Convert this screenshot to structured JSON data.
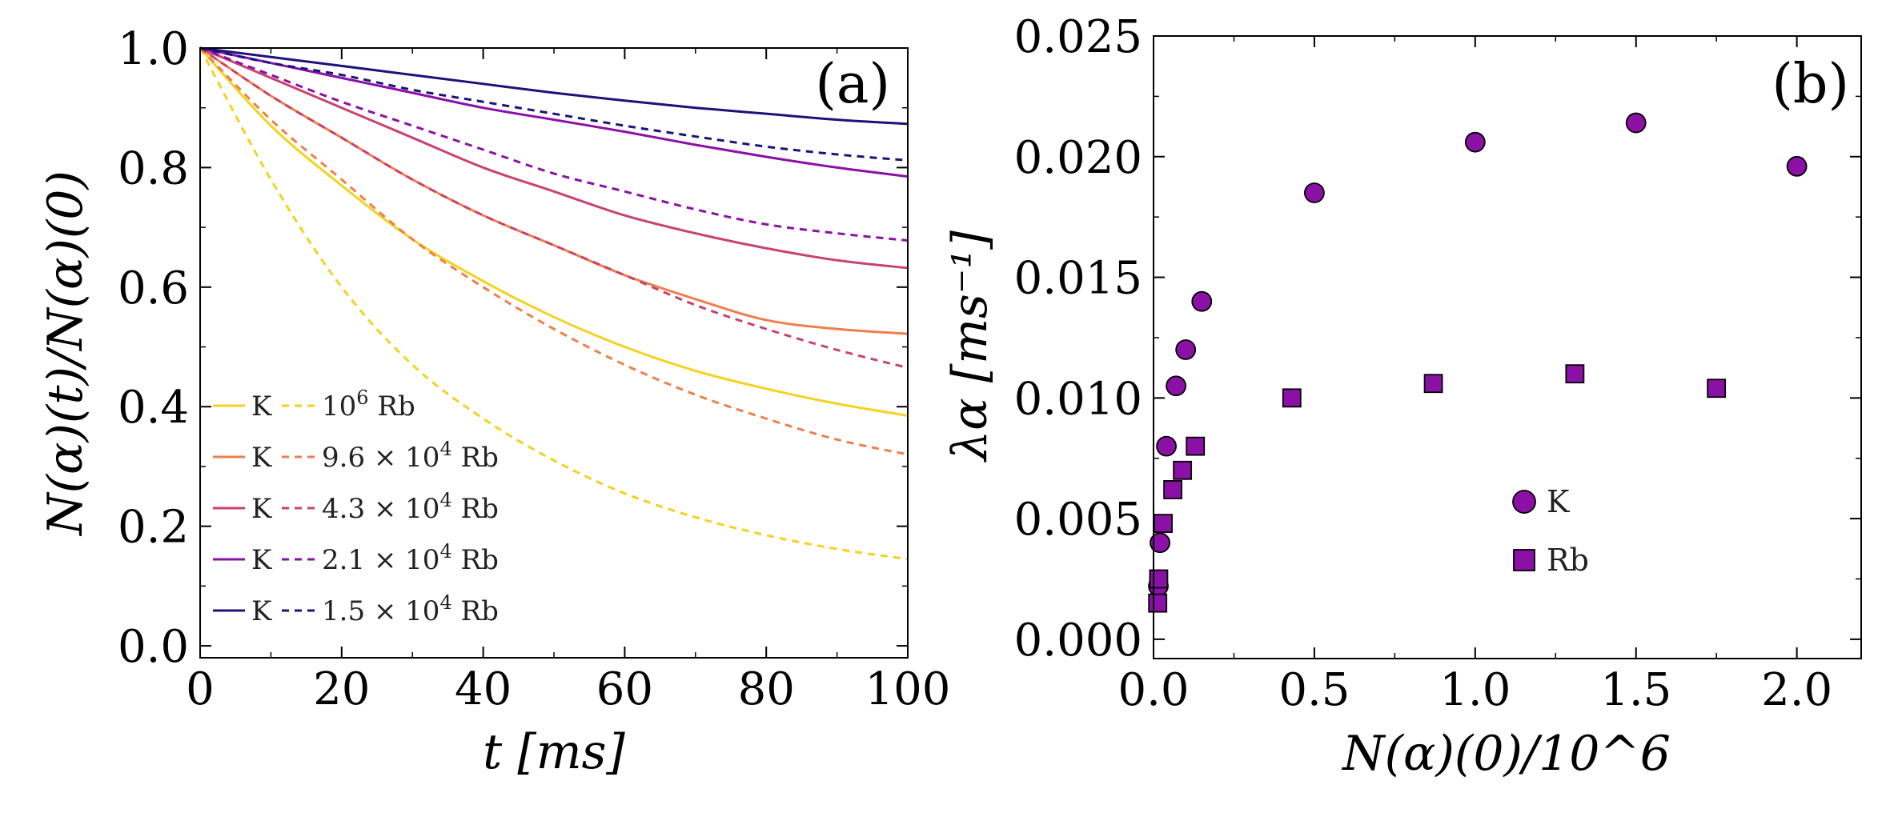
{
  "chart_data": [
    {
      "type": "line",
      "panel_label": "(a)",
      "xlabel": "t [ms]",
      "ylabel": "N(α)(t)/N(α)(0)",
      "xlim": [
        0,
        100
      ],
      "ylim": [
        0,
        1
      ],
      "xticks": [
        "0",
        "20",
        "40",
        "60",
        "80",
        "100"
      ],
      "yticks": [
        "0.0",
        "0.2",
        "0.4",
        "0.6",
        "0.8",
        "1.0"
      ],
      "xtick_values": [
        0,
        20,
        40,
        60,
        80,
        100
      ],
      "ytick_values": [
        0,
        0.2,
        0.4,
        0.6,
        0.8,
        1.0
      ],
      "legend_position": "bottom-left",
      "x": [
        0,
        10,
        20,
        30,
        40,
        50,
        60,
        70,
        80,
        90,
        100
      ],
      "series": [
        {
          "name": "K",
          "partner": "10^6 Rb",
          "species": "K",
          "dashed": false,
          "color": "#f4d21f",
          "values": [
            1.0,
            0.87,
            0.77,
            0.68,
            0.61,
            0.55,
            0.5,
            0.46,
            0.43,
            0.405,
            0.385
          ]
        },
        {
          "name": "Rb",
          "partner": "10^6 Rb",
          "species": "Rb",
          "dashed": true,
          "color": "#f4d21f",
          "values": [
            1.0,
            0.78,
            0.6,
            0.47,
            0.38,
            0.31,
            0.255,
            0.215,
            0.185,
            0.162,
            0.145
          ]
        },
        {
          "name": "K",
          "partner": "9.6 × 10^4 Rb",
          "species": "K",
          "dashed": false,
          "color": "#ef7f4a",
          "values": [
            1.0,
            0.92,
            0.85,
            0.78,
            0.72,
            0.67,
            0.62,
            0.58,
            0.545,
            0.53,
            0.522
          ]
        },
        {
          "name": "Rb",
          "partner": "9.6 × 10^4 Rb",
          "species": "Rb",
          "dashed": true,
          "color": "#ef7f4a",
          "values": [
            1.0,
            0.88,
            0.78,
            0.68,
            0.6,
            0.53,
            0.47,
            0.42,
            0.38,
            0.345,
            0.32
          ]
        },
        {
          "name": "K",
          "partner": "4.3 × 10^4 Rb",
          "species": "K",
          "dashed": false,
          "color": "#c9436f",
          "values": [
            1.0,
            0.95,
            0.9,
            0.85,
            0.8,
            0.76,
            0.72,
            0.69,
            0.665,
            0.645,
            0.632
          ]
        },
        {
          "name": "Rb",
          "partner": "4.3 × 10^4 Rb",
          "species": "Rb",
          "dashed": true,
          "color": "#c9436f",
          "values": [
            1.0,
            0.92,
            0.85,
            0.78,
            0.72,
            0.67,
            0.62,
            0.57,
            0.53,
            0.495,
            0.465
          ]
        },
        {
          "name": "K",
          "partner": "2.1 × 10^4 Rb",
          "species": "K",
          "dashed": false,
          "color": "#8b10a6",
          "values": [
            1.0,
            0.975,
            0.95,
            0.925,
            0.9,
            0.88,
            0.86,
            0.838,
            0.818,
            0.8,
            0.785
          ]
        },
        {
          "name": "Rb",
          "partner": "2.1 × 10^4 Rb",
          "species": "Rb",
          "dashed": true,
          "color": "#8b10a6",
          "values": [
            1.0,
            0.955,
            0.91,
            0.87,
            0.83,
            0.79,
            0.76,
            0.73,
            0.705,
            0.69,
            0.678
          ]
        },
        {
          "name": "K",
          "partner": "1.5 × 10^4 Rb",
          "species": "K",
          "dashed": false,
          "color": "#1a137a",
          "values": [
            1.0,
            0.985,
            0.97,
            0.955,
            0.94,
            0.925,
            0.912,
            0.9,
            0.89,
            0.88,
            0.873
          ]
        },
        {
          "name": "Rb",
          "partner": "1.5 × 10^4 Rb",
          "species": "Rb",
          "dashed": true,
          "color": "#1a137a",
          "values": [
            1.0,
            0.975,
            0.955,
            0.93,
            0.91,
            0.89,
            0.87,
            0.852,
            0.835,
            0.822,
            0.812
          ]
        }
      ]
    },
    {
      "type": "scatter",
      "panel_label": "(b)",
      "xlabel": "N(α)(0)/10^6",
      "ylabel": "λα [ms⁻¹]",
      "xlim": [
        0,
        2.2
      ],
      "ylim": [
        -0.0008,
        0.025
      ],
      "xticks": [
        "0.0",
        "0.5",
        "1.0",
        "1.5",
        "2.0"
      ],
      "yticks": [
        "0.000",
        "0.005",
        "0.010",
        "0.015",
        "0.020",
        "0.025"
      ],
      "xtick_values": [
        0,
        0.5,
        1.0,
        1.5,
        2.0
      ],
      "ytick_values": [
        0,
        0.005,
        0.01,
        0.015,
        0.02,
        0.025
      ],
      "legend_position": "center-right",
      "marker_color": "#8b10a6",
      "series": [
        {
          "name": "K",
          "marker": "circle",
          "x": [
            0.015,
            0.02,
            0.04,
            0.07,
            0.1,
            0.15,
            0.5,
            1.0,
            1.5,
            2.0
          ],
          "y": [
            0.0022,
            0.004,
            0.008,
            0.0105,
            0.012,
            0.014,
            0.0185,
            0.0206,
            0.0214,
            0.0196
          ]
        },
        {
          "name": "Rb",
          "marker": "square",
          "x": [
            0.013,
            0.016,
            0.03,
            0.06,
            0.09,
            0.13,
            0.43,
            0.87,
            1.31,
            1.75
          ],
          "y": [
            0.0015,
            0.0025,
            0.0048,
            0.0062,
            0.007,
            0.008,
            0.01,
            0.0106,
            0.011,
            0.0104
          ]
        }
      ]
    }
  ]
}
